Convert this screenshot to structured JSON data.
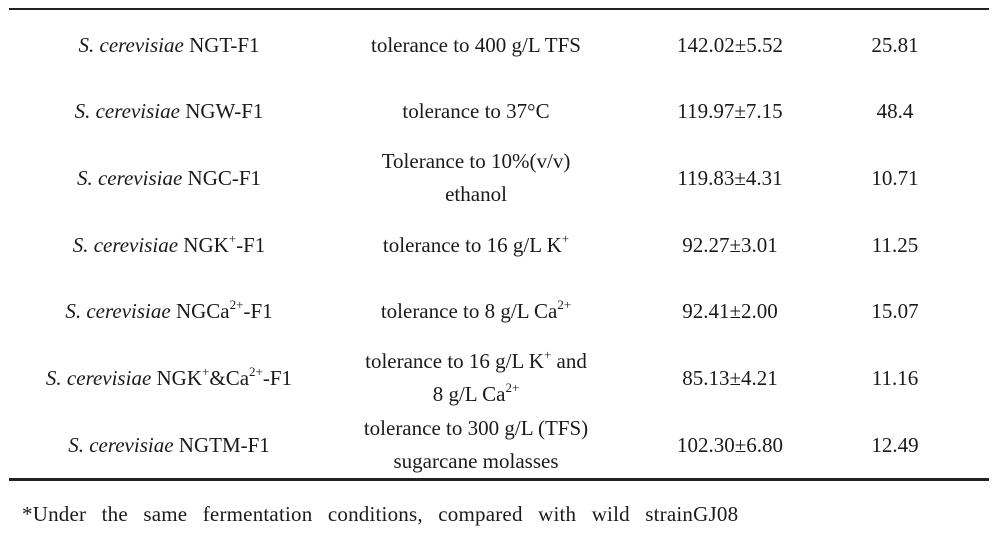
{
  "table": {
    "rows": [
      {
        "species": "S. cerevisiae",
        "strain_pre": "NGT-F1",
        "strain_sup": "",
        "strain_mid": "",
        "strain_sup2": "",
        "strain_post": "",
        "cond_line1_pre": "tolerance to 400 g/L TFS",
        "cond_line1_sup": "",
        "cond_line1_post": "",
        "cond_line2_pre": "",
        "cond_line2_sup": "",
        "yield": "142.02±5.52",
        "pct": "25.81"
      },
      {
        "species": "S. cerevisiae",
        "strain_pre": "NGW-F1",
        "strain_sup": "",
        "strain_mid": "",
        "strain_sup2": "",
        "strain_post": "",
        "cond_line1_pre": "tolerance to 37°C",
        "cond_line1_sup": "",
        "cond_line1_post": "",
        "cond_line2_pre": "",
        "cond_line2_sup": "",
        "yield": "119.97±7.15",
        "pct": "48.4"
      },
      {
        "species": "S. cerevisiae",
        "strain_pre": "NGC-F1",
        "strain_sup": "",
        "strain_mid": "",
        "strain_sup2": "",
        "strain_post": "",
        "cond_line1_pre": "Tolerance to 10%(v/v)",
        "cond_line1_sup": "",
        "cond_line1_post": "",
        "cond_line2_pre": "ethanol",
        "cond_line2_sup": "",
        "yield": "119.83±4.31",
        "pct": "10.71"
      },
      {
        "species": "S. cerevisiae",
        "strain_pre": "NGK",
        "strain_sup": "+",
        "strain_mid": "-F1",
        "strain_sup2": "",
        "strain_post": "",
        "cond_line1_pre": "tolerance to 16 g/L K",
        "cond_line1_sup": "+",
        "cond_line1_post": "",
        "cond_line2_pre": "",
        "cond_line2_sup": "",
        "yield": "92.27±3.01",
        "pct": "11.25"
      },
      {
        "species": "S. cerevisiae",
        "strain_pre": "NGCa",
        "strain_sup": "2+",
        "strain_mid": "-F1",
        "strain_sup2": "",
        "strain_post": "",
        "cond_line1_pre": "tolerance to 8 g/L Ca",
        "cond_line1_sup": "2+",
        "cond_line1_post": "",
        "cond_line2_pre": "",
        "cond_line2_sup": "",
        "yield": "92.41±2.00",
        "pct": "15.07"
      },
      {
        "species": "S. cerevisiae",
        "strain_pre": "NGK",
        "strain_sup": "+",
        "strain_mid": "&Ca",
        "strain_sup2": "2+",
        "strain_post": "-F1",
        "cond_line1_pre": "tolerance to 16 g/L K",
        "cond_line1_sup": "+",
        "cond_line1_post": " and",
        "cond_line2_pre": "8 g/L Ca",
        "cond_line2_sup": "2+",
        "yield": "85.13±4.21",
        "pct": "11.16"
      },
      {
        "species": "S. cerevisiae",
        "strain_pre": "NGTM-F1",
        "strain_sup": "",
        "strain_mid": "",
        "strain_sup2": "",
        "strain_post": "",
        "cond_line1_pre": "tolerance to 300 g/L (TFS)",
        "cond_line1_sup": "",
        "cond_line1_post": "",
        "cond_line2_pre": "sugarcane molasses",
        "cond_line2_sup": "",
        "yield": "102.30±6.80",
        "pct": "12.49"
      }
    ]
  },
  "footnote": "*Under the same fermentation conditions, compared with wild strainGJ08"
}
